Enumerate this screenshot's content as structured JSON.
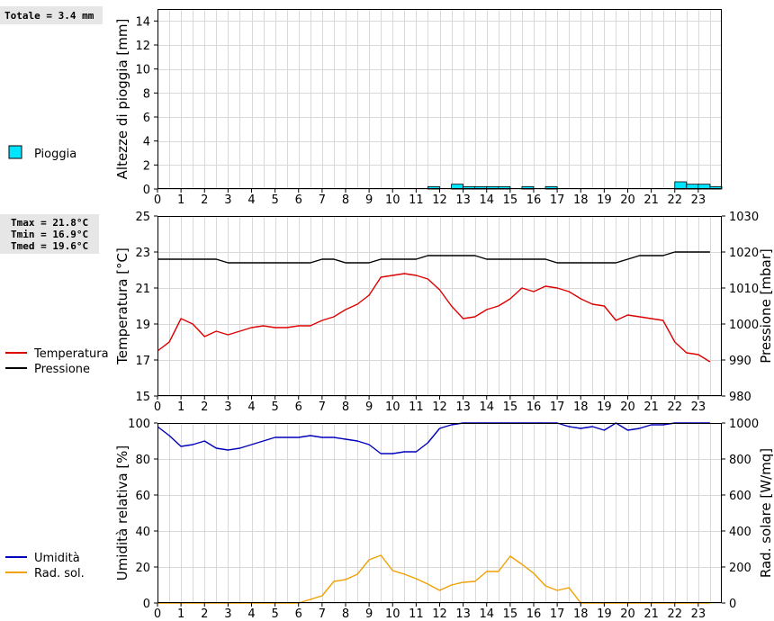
{
  "summary": {
    "rain_total": "Totale = 3.4 mm",
    "temp_stats": [
      "Tmax = 21.8°C",
      "Tmin = 16.9°C",
      "Tmed = 19.6°C"
    ]
  },
  "legend": {
    "rain": "Pioggia",
    "temperature": "Temperatura",
    "pressure": "Pressione",
    "humidity": "Umidità",
    "radiation": "Rad. sol."
  },
  "colors": {
    "rain_fill": "#00e5ff",
    "temperature": "#dd0000",
    "pressure": "#000000",
    "humidity": "#0000bb",
    "radiation": "#f0a000",
    "grid": "#d9d9d9"
  },
  "chart_data": [
    {
      "type": "bar",
      "ylabel": "Altezze di pioggia [mm]",
      "xlim": [
        0,
        24
      ],
      "ylim": [
        0,
        15
      ],
      "yticks": [
        0,
        2,
        4,
        6,
        8,
        10,
        12,
        14
      ],
      "xticks": [
        "0",
        "1",
        "2",
        "3",
        "4",
        "5",
        "6",
        "7",
        "8",
        "9",
        "10",
        "11",
        "12",
        "13",
        "14",
        "15",
        "16",
        "17",
        "18",
        "19",
        "20",
        "21",
        "22",
        "23"
      ],
      "series": [
        {
          "name": "Pioggia",
          "bar_width": 0.5,
          "x": [
            11.5,
            12.0,
            12.5,
            13.0,
            13.5,
            14.0,
            14.5,
            15.5,
            16.5,
            22.0,
            22.5,
            23.0,
            23.5
          ],
          "values": [
            0.2,
            0.0,
            0.4,
            0.2,
            0.2,
            0.2,
            0.2,
            0.2,
            0.2,
            0.6,
            0.4,
            0.4,
            0.2
          ]
        }
      ]
    },
    {
      "type": "line",
      "ylabel": "Temperatura [°C]",
      "ylabel_right": "Pressione [mbar]",
      "xlim": [
        0,
        24
      ],
      "ylim": [
        15,
        25
      ],
      "ylim_right": [
        980,
        1030
      ],
      "yticks": [
        15,
        17,
        19,
        21,
        23,
        25
      ],
      "yticks_right": [
        980,
        990,
        1000,
        1010,
        1020,
        1030
      ],
      "xticks": [
        "0",
        "1",
        "2",
        "3",
        "4",
        "5",
        "6",
        "7",
        "8",
        "9",
        "10",
        "11",
        "12",
        "13",
        "14",
        "15",
        "16",
        "17",
        "18",
        "19",
        "20",
        "21",
        "22",
        "23"
      ],
      "series": [
        {
          "name": "Temperatura",
          "axis": "left",
          "x": [
            0,
            0.5,
            1,
            1.5,
            2,
            2.5,
            3,
            3.5,
            4,
            4.5,
            5,
            5.5,
            6,
            6.5,
            7,
            7.5,
            8,
            8.5,
            9,
            9.5,
            10,
            10.5,
            11,
            11.5,
            12,
            12.5,
            13,
            13.5,
            14,
            14.5,
            15,
            15.5,
            16,
            16.5,
            17,
            17.5,
            18,
            18.5,
            19,
            19.5,
            20,
            20.5,
            21,
            21.5,
            22,
            22.5,
            23,
            23.5
          ],
          "values": [
            17.5,
            18.0,
            19.3,
            19.0,
            18.3,
            18.6,
            18.4,
            18.6,
            18.8,
            18.9,
            18.8,
            18.8,
            18.9,
            18.9,
            19.2,
            19.4,
            19.8,
            20.1,
            20.6,
            21.6,
            21.7,
            21.8,
            21.7,
            21.5,
            20.9,
            20.0,
            19.3,
            19.4,
            19.8,
            20.0,
            20.4,
            21.0,
            20.8,
            21.1,
            21.0,
            20.8,
            20.4,
            20.1,
            20.0,
            19.2,
            19.5,
            19.4,
            19.3,
            19.2,
            18.0,
            17.4,
            17.3,
            16.9
          ]
        },
        {
          "name": "Pressione",
          "axis": "right",
          "x": [
            0,
            0.5,
            1,
            1.5,
            2,
            2.5,
            3,
            3.5,
            4,
            4.5,
            5,
            5.5,
            6,
            6.5,
            7,
            7.5,
            8,
            8.5,
            9,
            9.5,
            10,
            10.5,
            11,
            11.5,
            12,
            12.5,
            13,
            13.5,
            14,
            14.5,
            15,
            15.5,
            16,
            16.5,
            17,
            17.5,
            18,
            18.5,
            19,
            19.5,
            20,
            20.5,
            21,
            21.5,
            22,
            22.5,
            23,
            23.5
          ],
          "values": [
            1018,
            1018,
            1018,
            1018,
            1018,
            1018,
            1017,
            1017,
            1017,
            1017,
            1017,
            1017,
            1017,
            1017,
            1018,
            1018,
            1017,
            1017,
            1017,
            1018,
            1018,
            1018,
            1018,
            1019,
            1019,
            1019,
            1019,
            1019,
            1018,
            1018,
            1018,
            1018,
            1018,
            1018,
            1017,
            1017,
            1017,
            1017,
            1017,
            1017,
            1018,
            1019,
            1019,
            1019,
            1020,
            1020,
            1020,
            1020
          ]
        }
      ]
    },
    {
      "type": "line",
      "ylabel": "Umidità relativa [%]",
      "ylabel_right": "Rad. solare [W/mq]",
      "xlim": [
        0,
        24
      ],
      "ylim": [
        0,
        100
      ],
      "ylim_right": [
        0,
        1000
      ],
      "yticks": [
        0,
        20,
        40,
        60,
        80,
        100
      ],
      "yticks_right": [
        0,
        200,
        400,
        600,
        800,
        1000
      ],
      "xticks": [
        "0",
        "1",
        "2",
        "3",
        "4",
        "5",
        "6",
        "7",
        "8",
        "9",
        "10",
        "11",
        "12",
        "13",
        "14",
        "15",
        "16",
        "17",
        "18",
        "19",
        "20",
        "21",
        "22",
        "23"
      ],
      "series": [
        {
          "name": "Umidità",
          "axis": "left",
          "x": [
            0,
            0.5,
            1,
            1.5,
            2,
            2.5,
            3,
            3.5,
            4,
            4.5,
            5,
            5.5,
            6,
            6.5,
            7,
            7.5,
            8,
            8.5,
            9,
            9.5,
            10,
            10.5,
            11,
            11.5,
            12,
            12.5,
            13,
            13.5,
            14,
            14.5,
            15,
            15.5,
            16,
            16.5,
            17,
            17.5,
            18,
            18.5,
            19,
            19.5,
            20,
            20.5,
            21,
            21.5,
            22,
            22.5,
            23,
            23.5
          ],
          "values": [
            98,
            93,
            87,
            88,
            90,
            86,
            85,
            86,
            88,
            90,
            92,
            92,
            92,
            93,
            92,
            92,
            91,
            90,
            88,
            83,
            83,
            84,
            84,
            89,
            97,
            99,
            100,
            100,
            100,
            100,
            100,
            100,
            100,
            100,
            100,
            98,
            97,
            98,
            96,
            100,
            96,
            97,
            99,
            99,
            100,
            100,
            100,
            100
          ]
        },
        {
          "name": "Rad. sol.",
          "axis": "right",
          "x": [
            0,
            0.5,
            1,
            1.5,
            2,
            2.5,
            3,
            3.5,
            4,
            4.5,
            5,
            5.5,
            6,
            6.5,
            7,
            7.5,
            8,
            8.5,
            9,
            9.5,
            10,
            10.5,
            11,
            11.5,
            12,
            12.5,
            13,
            13.5,
            14,
            14.5,
            15,
            15.5,
            16,
            16.5,
            17,
            17.5,
            18,
            18.5,
            19,
            19.5,
            20,
            20.5,
            21,
            21.5,
            22,
            22.5,
            23,
            23.5
          ],
          "values": [
            0,
            0,
            0,
            0,
            0,
            0,
            0,
            0,
            0,
            0,
            0,
            0,
            0,
            20,
            40,
            120,
            130,
            160,
            240,
            265,
            180,
            160,
            135,
            105,
            70,
            100,
            115,
            120,
            175,
            175,
            260,
            215,
            165,
            95,
            70,
            85,
            0,
            0,
            0,
            0,
            0,
            0,
            0,
            0,
            0,
            0,
            0,
            0
          ]
        }
      ]
    }
  ]
}
